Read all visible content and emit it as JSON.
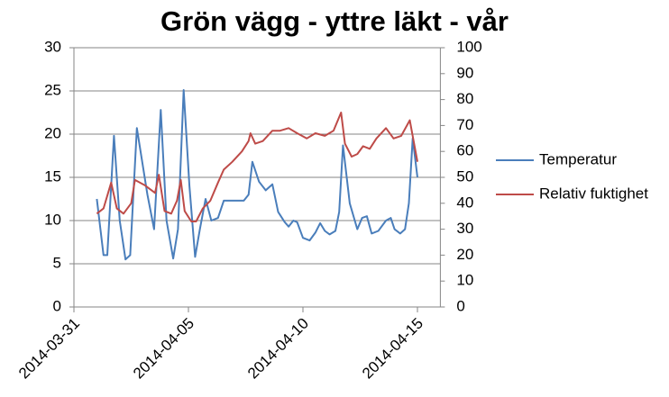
{
  "chart_data": {
    "type": "line",
    "title": "Grön vägg - yttre läkt - vår",
    "xlim": [
      "2014-03-31",
      "2014-04-16"
    ],
    "xticks": [
      "2014-03-31",
      "2014-04-05",
      "2014-04-10",
      "2014-04-15"
    ],
    "ylim": [
      0,
      30
    ],
    "yticks": [
      0,
      5,
      10,
      15,
      20,
      25,
      30
    ],
    "y2lim": [
      0,
      100
    ],
    "y2ticks": [
      0,
      10,
      20,
      30,
      40,
      50,
      60,
      70,
      80,
      90,
      100
    ],
    "grid": true,
    "legend": "right",
    "series": [
      {
        "name": "Temperatur",
        "color": "#4a7ebb",
        "x": [
          "2014-04-01T00:00",
          "2014-04-01T07:00",
          "2014-04-01T11:00",
          "2014-04-01T18:00",
          "2014-04-02T00:00",
          "2014-04-02T06:00",
          "2014-04-02T11:00",
          "2014-04-02T18:00",
          "2014-04-03T05:00",
          "2014-04-03T12:00",
          "2014-04-03T19:00",
          "2014-04-04T01:00",
          "2014-04-04T08:00",
          "2014-04-04T13:00",
          "2014-04-04T19:00",
          "2014-04-05T01:00",
          "2014-04-05T07:00",
          "2014-04-05T12:00",
          "2014-04-05T18:00",
          "2014-04-06T00:00",
          "2014-04-06T07:00",
          "2014-04-06T13:00",
          "2014-04-07T00:00",
          "2014-04-07T10:00",
          "2014-04-07T15:00",
          "2014-04-07T19:00",
          "2014-04-08T02:00",
          "2014-04-08T09:00",
          "2014-04-08T16:00",
          "2014-04-08T22:00",
          "2014-04-09T05:00",
          "2014-04-09T09:00",
          "2014-04-09T14:00",
          "2014-04-09T18:00",
          "2014-04-10T00:00",
          "2014-04-10T07:00",
          "2014-04-10T13:00",
          "2014-04-10T18:00",
          "2014-04-10T23:00",
          "2014-04-11T04:00",
          "2014-04-11T10:00",
          "2014-04-11T14:00",
          "2014-04-11T18:00",
          "2014-04-12T01:00",
          "2014-04-12T09:00",
          "2014-04-12T14:00",
          "2014-04-12T19:00",
          "2014-04-13T00:00",
          "2014-04-13T07:00",
          "2014-04-13T15:00",
          "2014-04-13T20:00",
          "2014-04-14T00:00",
          "2014-04-14T06:00",
          "2014-04-14T11:00",
          "2014-04-14T15:00",
          "2014-04-14T19:00",
          "2014-04-15T00:00"
        ],
        "values": [
          12.5,
          6,
          6,
          19.8,
          10,
          5.5,
          6,
          20.7,
          13,
          9,
          22.8,
          10,
          5.6,
          9,
          25.1,
          14,
          5.8,
          9,
          12.5,
          10,
          10.3,
          12.3,
          12.3,
          12.3,
          13,
          16.8,
          14.5,
          13.5,
          14.2,
          11,
          9.8,
          9.3,
          10,
          9.8,
          8,
          7.7,
          8.6,
          9.7,
          8.8,
          8.4,
          8.8,
          11,
          18.7,
          12,
          9,
          10.3,
          10.5,
          8.5,
          8.8,
          10,
          10.3,
          9,
          8.5,
          9,
          12,
          19.5,
          15
        ]
      },
      {
        "name": "Relativ fuktighet",
        "color": "#be4b48",
        "axis": "y2",
        "x": [
          "2014-04-01T00:00",
          "2014-04-01T07:00",
          "2014-04-01T15:00",
          "2014-04-01T21:00",
          "2014-04-02T04:00",
          "2014-04-02T12:00",
          "2014-04-02T16:00",
          "2014-04-03T02:00",
          "2014-04-03T13:00",
          "2014-04-03T17:00",
          "2014-04-03T23:00",
          "2014-04-04T06:00",
          "2014-04-04T12:00",
          "2014-04-04T16:00",
          "2014-04-04T20:00",
          "2014-04-05T03:00",
          "2014-04-05T08:00",
          "2014-04-05T15:00",
          "2014-04-05T23:00",
          "2014-04-06T07:00",
          "2014-04-06T13:00",
          "2014-04-06T22:00",
          "2014-04-07T08:00",
          "2014-04-07T15:00",
          "2014-04-07T17:00",
          "2014-04-07T22:00",
          "2014-04-08T06:00",
          "2014-04-08T16:00",
          "2014-04-09T00:00",
          "2014-04-09T09:00",
          "2014-04-09T18:00",
          "2014-04-10T04:00",
          "2014-04-10T13:00",
          "2014-04-10T23:00",
          "2014-04-11T08:00",
          "2014-04-11T16:00",
          "2014-04-11T20:00",
          "2014-04-12T03:00",
          "2014-04-12T09:00",
          "2014-04-12T15:00",
          "2014-04-12T22:00",
          "2014-04-13T05:00",
          "2014-04-13T15:00",
          "2014-04-13T23:00",
          "2014-04-14T07:00",
          "2014-04-14T16:00",
          "2014-04-14T19:00",
          "2014-04-15T00:00"
        ],
        "values": [
          36,
          38,
          48,
          38,
          36,
          40,
          49,
          47,
          44,
          51,
          37,
          36,
          41,
          49,
          37,
          33,
          33,
          38,
          41,
          48,
          53,
          56,
          60,
          64,
          67,
          63,
          64,
          68,
          68,
          69,
          67,
          65,
          67,
          66,
          68,
          75,
          63,
          58,
          59,
          62,
          61,
          65,
          69,
          65,
          66,
          72,
          66,
          56
        ]
      }
    ]
  }
}
